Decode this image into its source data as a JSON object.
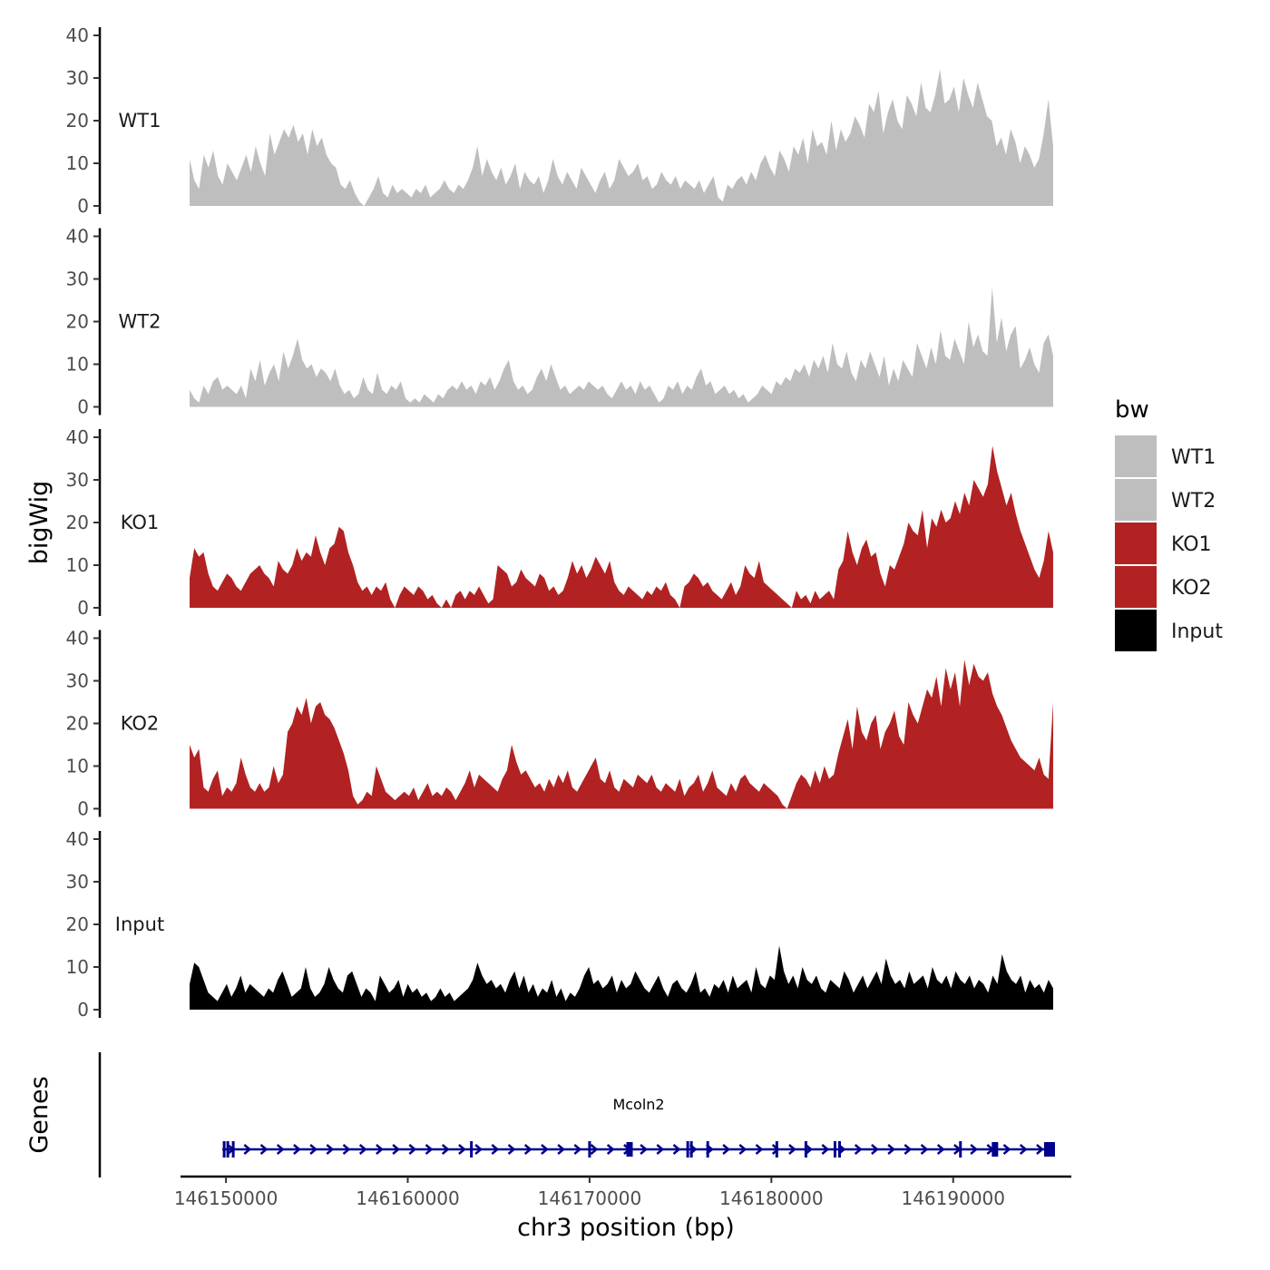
{
  "chart_data": {
    "type": "area",
    "xlabel": "chr3 position (bp)",
    "ylabel": "bigWig",
    "genes_label": "Genes",
    "xlim": [
      146147500,
      146196500
    ],
    "x_range_data": [
      146148000,
      146195500
    ],
    "x_ticks": [
      146150000,
      146160000,
      146170000,
      146180000,
      146190000
    ],
    "x_tick_labels": [
      "146150000",
      "146160000",
      "146170000",
      "146180000",
      "146190000"
    ],
    "ylim": [
      0,
      40
    ],
    "y_ticks": [
      0,
      10,
      20,
      30,
      40
    ],
    "y_tick_labels": [
      "0",
      "10",
      "20",
      "30",
      "40"
    ],
    "legend": {
      "title": "bw",
      "entries": [
        {
          "label": "WT1",
          "color": "#bebebe"
        },
        {
          "label": "WT2",
          "color": "#bebebe"
        },
        {
          "label": "KO1",
          "color": "#b22222"
        },
        {
          "label": "KO2",
          "color": "#b22222"
        },
        {
          "label": "Input",
          "color": "#000000"
        }
      ]
    },
    "series": [
      {
        "name": "WT1",
        "color": "#bebebe",
        "values": [
          11,
          6,
          4,
          12,
          9,
          13,
          7,
          5,
          10,
          8,
          6,
          9,
          12,
          8,
          14,
          10,
          7,
          17,
          12,
          15,
          18,
          16,
          19,
          15,
          17,
          12,
          18,
          14,
          16,
          12,
          10,
          9,
          5,
          4,
          6,
          3,
          1,
          0,
          2,
          4,
          7,
          3,
          2,
          5,
          3,
          4,
          3,
          2,
          4,
          3,
          5,
          2,
          3,
          4,
          6,
          4,
          3,
          5,
          4,
          6,
          9,
          14,
          7,
          11,
          8,
          6,
          9,
          5,
          7,
          10,
          4,
          8,
          6,
          5,
          7,
          3,
          6,
          11,
          7,
          5,
          8,
          6,
          4,
          9,
          7,
          5,
          3,
          6,
          8,
          4,
          6,
          11,
          9,
          7,
          8,
          10,
          6,
          7,
          4,
          5,
          8,
          6,
          5,
          7,
          4,
          6,
          5,
          4,
          6,
          3,
          5,
          7,
          2,
          1,
          5,
          4,
          6,
          7,
          5,
          8,
          6,
          10,
          12,
          9,
          7,
          13,
          11,
          8,
          14,
          12,
          16,
          10,
          18,
          14,
          15,
          12,
          20,
          13,
          18,
          15,
          17,
          21,
          19,
          16,
          24,
          22,
          27,
          17,
          22,
          25,
          20,
          18,
          26,
          24,
          21,
          29,
          23,
          22,
          26,
          32,
          24,
          25,
          28,
          22,
          30,
          26,
          23,
          29,
          25,
          21,
          20,
          14,
          16,
          12,
          18,
          15,
          10,
          14,
          12,
          9,
          11,
          17,
          25,
          14
        ]
      },
      {
        "name": "WT2",
        "color": "#bebebe",
        "values": [
          4,
          2,
          1,
          5,
          3,
          6,
          7,
          4,
          5,
          4,
          3,
          5,
          2,
          9,
          6,
          11,
          5,
          8,
          10,
          6,
          13,
          9,
          12,
          16,
          11,
          9,
          10,
          7,
          9,
          8,
          6,
          9,
          5,
          3,
          4,
          2,
          3,
          7,
          4,
          3,
          8,
          4,
          3,
          5,
          4,
          6,
          2,
          1,
          2,
          1,
          3,
          2,
          1,
          3,
          2,
          4,
          5,
          4,
          6,
          4,
          5,
          3,
          6,
          5,
          7,
          4,
          6,
          9,
          11,
          6,
          4,
          5,
          3,
          4,
          7,
          9,
          6,
          10,
          7,
          4,
          5,
          3,
          4,
          5,
          4,
          6,
          5,
          4,
          5,
          3,
          2,
          4,
          6,
          4,
          5,
          3,
          6,
          4,
          5,
          3,
          1,
          2,
          5,
          4,
          6,
          3,
          5,
          4,
          7,
          9,
          5,
          6,
          3,
          4,
          5,
          3,
          4,
          2,
          3,
          1,
          2,
          3,
          5,
          4,
          3,
          6,
          5,
          7,
          6,
          9,
          8,
          10,
          7,
          11,
          9,
          12,
          8,
          15,
          10,
          9,
          13,
          8,
          6,
          11,
          9,
          13,
          10,
          7,
          12,
          5,
          9,
          6,
          11,
          9,
          7,
          15,
          12,
          9,
          14,
          10,
          18,
          12,
          11,
          16,
          13,
          10,
          20,
          14,
          17,
          13,
          12,
          28,
          15,
          21,
          13,
          17,
          19,
          9,
          11,
          14,
          10,
          8,
          15,
          17,
          12
        ]
      },
      {
        "name": "KO1",
        "color": "#b22222",
        "values": [
          7,
          14,
          12,
          13,
          8,
          5,
          4,
          6,
          8,
          7,
          5,
          4,
          6,
          8,
          9,
          10,
          8,
          7,
          5,
          11,
          9,
          8,
          10,
          14,
          11,
          13,
          12,
          17,
          13,
          10,
          14,
          15,
          19,
          18,
          13,
          10,
          6,
          4,
          5,
          3,
          5,
          4,
          6,
          2,
          0,
          3,
          5,
          4,
          3,
          5,
          4,
          2,
          3,
          1,
          0,
          2,
          0,
          3,
          4,
          2,
          4,
          3,
          5,
          3,
          1,
          2,
          10,
          9,
          8,
          5,
          6,
          9,
          7,
          6,
          5,
          8,
          7,
          4,
          5,
          3,
          4,
          7,
          11,
          8,
          10,
          7,
          9,
          12,
          10,
          8,
          11,
          6,
          4,
          3,
          5,
          4,
          3,
          2,
          4,
          3,
          5,
          4,
          6,
          3,
          2,
          0,
          5,
          6,
          8,
          7,
          5,
          6,
          4,
          3,
          2,
          4,
          6,
          3,
          5,
          10,
          8,
          7,
          11,
          6,
          5,
          4,
          3,
          2,
          1,
          0,
          4,
          2,
          3,
          1,
          4,
          2,
          3,
          4,
          2,
          9,
          11,
          18,
          13,
          10,
          14,
          16,
          12,
          13,
          8,
          5,
          10,
          9,
          12,
          15,
          20,
          18,
          17,
          23,
          14,
          21,
          19,
          23,
          20,
          21,
          25,
          22,
          27,
          24,
          30,
          28,
          26,
          29,
          38,
          32,
          28,
          24,
          27,
          22,
          18,
          15,
          12,
          9,
          7,
          11,
          18,
          13
        ]
      },
      {
        "name": "KO2",
        "color": "#b22222",
        "values": [
          15,
          12,
          14,
          5,
          4,
          7,
          9,
          3,
          5,
          4,
          6,
          12,
          8,
          5,
          4,
          6,
          4,
          5,
          10,
          6,
          8,
          18,
          20,
          24,
          22,
          26,
          20,
          24,
          25,
          22,
          21,
          19,
          16,
          13,
          9,
          3,
          1,
          2,
          4,
          3,
          10,
          7,
          4,
          3,
          2,
          3,
          4,
          3,
          5,
          2,
          4,
          6,
          3,
          4,
          3,
          5,
          4,
          2,
          4,
          6,
          9,
          5,
          8,
          7,
          6,
          5,
          4,
          7,
          9,
          15,
          11,
          8,
          9,
          7,
          5,
          6,
          4,
          7,
          5,
          8,
          6,
          9,
          5,
          4,
          6,
          8,
          10,
          12,
          7,
          6,
          9,
          5,
          4,
          7,
          6,
          5,
          8,
          7,
          6,
          8,
          5,
          4,
          6,
          5,
          4,
          7,
          3,
          5,
          6,
          8,
          4,
          6,
          9,
          5,
          4,
          3,
          6,
          4,
          7,
          8,
          6,
          5,
          4,
          6,
          5,
          4,
          3,
          1,
          0,
          3,
          6,
          8,
          7,
          5,
          9,
          6,
          10,
          7,
          8,
          13,
          17,
          21,
          14,
          24,
          18,
          16,
          20,
          22,
          14,
          18,
          20,
          23,
          17,
          15,
          25,
          22,
          20,
          24,
          28,
          26,
          31,
          24,
          33,
          28,
          32,
          24,
          35,
          29,
          34,
          31,
          30,
          32,
          27,
          24,
          22,
          19,
          16,
          14,
          12,
          11,
          10,
          9,
          12,
          8,
          7,
          25
        ]
      },
      {
        "name": "Input",
        "color": "#000000",
        "values": [
          6,
          11,
          10,
          7,
          4,
          3,
          2,
          4,
          6,
          3,
          5,
          8,
          4,
          6,
          5,
          4,
          3,
          5,
          4,
          7,
          9,
          6,
          3,
          4,
          5,
          10,
          5,
          3,
          4,
          6,
          10,
          7,
          5,
          4,
          8,
          9,
          6,
          3,
          5,
          4,
          2,
          8,
          6,
          4,
          5,
          7,
          3,
          6,
          4,
          5,
          3,
          4,
          2,
          3,
          5,
          3,
          4,
          2,
          3,
          4,
          5,
          7,
          11,
          8,
          6,
          7,
          5,
          6,
          4,
          7,
          9,
          5,
          8,
          4,
          6,
          3,
          5,
          4,
          7,
          3,
          5,
          2,
          4,
          3,
          5,
          8,
          10,
          6,
          7,
          5,
          6,
          8,
          4,
          7,
          5,
          6,
          9,
          7,
          5,
          4,
          6,
          8,
          5,
          3,
          6,
          7,
          5,
          4,
          6,
          9,
          4,
          5,
          3,
          6,
          5,
          7,
          4,
          8,
          5,
          6,
          7,
          4,
          10,
          6,
          5,
          8,
          7,
          15,
          9,
          6,
          8,
          5,
          10,
          7,
          6,
          8,
          5,
          4,
          7,
          6,
          5,
          9,
          7,
          4,
          6,
          8,
          5,
          7,
          9,
          6,
          12,
          8,
          6,
          7,
          5,
          9,
          6,
          7,
          8,
          5,
          10,
          7,
          6,
          8,
          5,
          9,
          7,
          6,
          8,
          5,
          7,
          6,
          4,
          8,
          6,
          13,
          9,
          7,
          6,
          8,
          4,
          7,
          5,
          6,
          4,
          7,
          5
        ]
      }
    ],
    "gene": {
      "name": "Mcoln2",
      "start": 146149800,
      "end": 146195600,
      "strand": "+",
      "color": "#00008b",
      "exons": [
        146149900,
        146150100,
        146150400,
        146163500,
        146170000,
        146172200,
        146175400,
        146175600,
        146176500,
        146180300,
        146181900,
        146183500,
        146183750,
        146190400,
        146192300,
        146195300
      ]
    }
  }
}
